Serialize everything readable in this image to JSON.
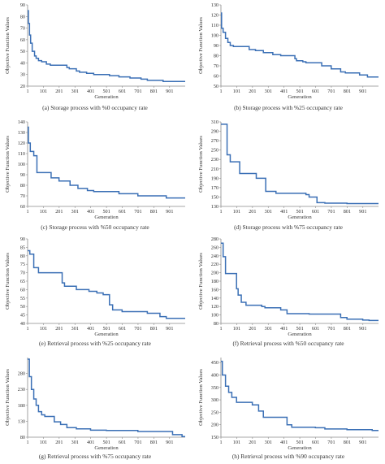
{
  "chart_data": [
    {
      "type": "line",
      "caption": "(a) Storage process with %0 occupancy rate",
      "xlabel": "Generation",
      "ylabel": "Objective Function Values",
      "xticks": [
        "1",
        "101",
        "201",
        "301",
        "401",
        "501",
        "601",
        "701",
        "801",
        "901"
      ],
      "yticks": [
        "20",
        "30",
        "40",
        "50",
        "60",
        "70",
        "80",
        "90"
      ],
      "xlim": [
        1,
        1000
      ],
      "ylim": [
        20,
        90
      ],
      "x": [
        1,
        6,
        6,
        13,
        13,
        20,
        20,
        30,
        30,
        45,
        45,
        55,
        55,
        70,
        70,
        90,
        90,
        120,
        120,
        145,
        145,
        250,
        250,
        265,
        265,
        310,
        310,
        330,
        330,
        375,
        375,
        420,
        420,
        520,
        520,
        580,
        580,
        650,
        650,
        720,
        720,
        760,
        760,
        860,
        860,
        1000
      ],
      "y": [
        85,
        85,
        74,
        74,
        64,
        64,
        57,
        57,
        50,
        50,
        46,
        46,
        44,
        44,
        42,
        42,
        41,
        41,
        39,
        39,
        38,
        38,
        36,
        36,
        35,
        35,
        33,
        33,
        32,
        32,
        31,
        31,
        30,
        30,
        29,
        29,
        28,
        28,
        27,
        27,
        26,
        26,
        25,
        25,
        24,
        24
      ]
    },
    {
      "type": "line",
      "caption": "(b) Storage process with %25 occupancy rate",
      "xlabel": "Generation",
      "ylabel": "Objective Function Values",
      "xticks": [
        "1",
        "101",
        "201",
        "301",
        "401",
        "501",
        "601",
        "701",
        "801",
        "901"
      ],
      "yticks": [
        "50",
        "60",
        "70",
        "80",
        "90",
        "100",
        "110",
        "120",
        "130"
      ],
      "xlim": [
        1,
        1000
      ],
      "ylim": [
        50,
        130
      ],
      "x": [
        1,
        5,
        5,
        15,
        15,
        30,
        30,
        45,
        45,
        60,
        60,
        80,
        80,
        180,
        180,
        220,
        220,
        270,
        270,
        330,
        330,
        380,
        380,
        470,
        470,
        480,
        480,
        520,
        520,
        540,
        540,
        640,
        640,
        700,
        700,
        760,
        760,
        790,
        790,
        880,
        880,
        930,
        930,
        1000
      ],
      "y": [
        122,
        122,
        107,
        107,
        103,
        103,
        97,
        97,
        93,
        93,
        90,
        90,
        89,
        89,
        86,
        86,
        85,
        85,
        83,
        83,
        81,
        81,
        80,
        80,
        77,
        77,
        75,
        75,
        74,
        74,
        73,
        73,
        70,
        70,
        67,
        67,
        64,
        64,
        63,
        63,
        61,
        61,
        59,
        59
      ]
    },
    {
      "type": "line",
      "caption": "(c) Storage process with %50 occupancy rate",
      "xlabel": "Generation",
      "ylabel": "Objective Function Values",
      "xticks": [
        "1",
        "101",
        "201",
        "301",
        "401",
        "501",
        "601",
        "701",
        "801",
        "901"
      ],
      "yticks": [
        "60",
        "70",
        "80",
        "90",
        "100",
        "110",
        "120",
        "130",
        "140"
      ],
      "xlim": [
        1,
        1000
      ],
      "ylim": [
        60,
        140
      ],
      "x": [
        1,
        6,
        6,
        18,
        18,
        40,
        40,
        60,
        60,
        150,
        150,
        200,
        200,
        270,
        270,
        320,
        320,
        380,
        380,
        420,
        420,
        580,
        580,
        700,
        700,
        880,
        880,
        1000
      ],
      "y": [
        135,
        135,
        120,
        120,
        112,
        112,
        108,
        108,
        92,
        92,
        87,
        87,
        84,
        84,
        80,
        80,
        77,
        77,
        75,
        75,
        74,
        74,
        72,
        72,
        70,
        70,
        68,
        68
      ]
    },
    {
      "type": "line",
      "caption": "(d) Storage process with %75 occupancy rate",
      "xlabel": "Generation",
      "ylabel": "Objective Function Values",
      "xticks": [
        "1",
        "101",
        "201",
        "301",
        "401",
        "501",
        "601",
        "701",
        "801",
        "901"
      ],
      "yticks": [
        "130",
        "150",
        "170",
        "190",
        "210",
        "230",
        "250",
        "270",
        "290",
        "310"
      ],
      "xlim": [
        1,
        1000
      ],
      "ylim": [
        130,
        310
      ],
      "x": [
        1,
        40,
        40,
        60,
        60,
        120,
        120,
        225,
        225,
        285,
        285,
        310,
        310,
        350,
        350,
        540,
        540,
        560,
        560,
        610,
        610,
        660,
        660,
        800,
        800,
        1000
      ],
      "y": [
        305,
        305,
        240,
        240,
        225,
        225,
        200,
        200,
        190,
        190,
        162,
        162,
        162,
        162,
        158,
        158,
        155,
        155,
        150,
        150,
        138,
        138,
        137,
        137,
        136,
        136
      ]
    },
    {
      "type": "line",
      "caption": "(e) Retrieval process with %25 occupancy rate",
      "xlabel": "Generation",
      "ylabel": "Objective Function Values",
      "xticks": [
        "1",
        "101",
        "201",
        "301",
        "401",
        "501",
        "601",
        "701",
        "801",
        "901"
      ],
      "yticks": [
        "40",
        "45",
        "50",
        "55",
        "60",
        "65",
        "70",
        "75",
        "80",
        "85",
        "90"
      ],
      "xlim": [
        1,
        1000
      ],
      "ylim": [
        40,
        90
      ],
      "x": [
        1,
        15,
        15,
        40,
        40,
        70,
        70,
        110,
        110,
        220,
        220,
        235,
        235,
        270,
        270,
        310,
        310,
        390,
        390,
        440,
        440,
        480,
        480,
        520,
        520,
        540,
        540,
        600,
        600,
        760,
        760,
        840,
        840,
        880,
        880,
        1000
      ],
      "y": [
        83,
        83,
        81,
        81,
        73,
        73,
        70,
        70,
        70,
        70,
        64,
        64,
        62,
        62,
        62,
        62,
        60,
        60,
        59,
        59,
        58,
        58,
        57,
        57,
        51,
        51,
        48,
        48,
        47,
        47,
        46,
        46,
        44,
        44,
        43,
        43
      ]
    },
    {
      "type": "line",
      "caption": "(f) Retrieval process with %50 occupancy rate",
      "xlabel": "Generation",
      "ylabel": "Objective Function Values",
      "xticks": [
        "1",
        "101",
        "201",
        "301",
        "401",
        "501",
        "601",
        "701",
        "801",
        "901"
      ],
      "yticks": [
        "80",
        "100",
        "120",
        "140",
        "160",
        "180",
        "200",
        "220",
        "240",
        "260",
        "280"
      ],
      "xlim": [
        1,
        1000
      ],
      "ylim": [
        80,
        280
      ],
      "x": [
        1,
        15,
        15,
        30,
        30,
        100,
        100,
        110,
        110,
        130,
        130,
        160,
        160,
        260,
        260,
        280,
        280,
        380,
        380,
        420,
        420,
        560,
        560,
        760,
        760,
        800,
        800,
        900,
        900,
        940,
        940,
        1000
      ],
      "y": [
        270,
        270,
        238,
        238,
        198,
        198,
        162,
        162,
        147,
        147,
        130,
        130,
        123,
        123,
        120,
        120,
        117,
        117,
        112,
        112,
        103,
        103,
        102,
        102,
        94,
        94,
        90,
        90,
        88,
        88,
        87,
        87
      ]
    },
    {
      "type": "line",
      "caption": "(g) Retrieval process with %75 occupancy rate",
      "xlabel": "Generation",
      "ylabel": "Objective Function Values",
      "xticks": [
        "1",
        "101",
        "201",
        "301",
        "401",
        "501",
        "601",
        "701",
        "801",
        "901"
      ],
      "yticks": [
        "80",
        "130",
        "180",
        "230",
        "280"
      ],
      "xlim": [
        1,
        1000
      ],
      "ylim": [
        80,
        330
      ],
      "x": [
        1,
        12,
        12,
        25,
        25,
        40,
        40,
        55,
        55,
        70,
        70,
        90,
        90,
        110,
        110,
        170,
        170,
        210,
        210,
        250,
        250,
        310,
        310,
        400,
        400,
        500,
        500,
        700,
        700,
        920,
        920,
        980,
        980,
        1000
      ],
      "y": [
        325,
        325,
        270,
        270,
        230,
        230,
        200,
        200,
        180,
        180,
        160,
        160,
        150,
        150,
        145,
        145,
        128,
        128,
        120,
        120,
        110,
        110,
        106,
        106,
        102,
        102,
        101,
        101,
        98,
        98,
        88,
        88,
        82,
        82
      ]
    },
    {
      "type": "line",
      "caption": "(h) Retrieval process with %90 occupancy rate",
      "xlabel": "Generation",
      "ylabel": "Objective Function Values",
      "xticks": [
        "1",
        "101",
        "201",
        "301",
        "401",
        "501",
        "601",
        "701",
        "801",
        "901"
      ],
      "yticks": [
        "150",
        "200",
        "250",
        "300",
        "350",
        "400",
        "450"
      ],
      "xlim": [
        1,
        1000
      ],
      "ylim": [
        150,
        470
      ],
      "x": [
        1,
        10,
        10,
        30,
        30,
        50,
        50,
        70,
        70,
        100,
        100,
        200,
        200,
        240,
        240,
        270,
        270,
        290,
        290,
        420,
        420,
        450,
        450,
        600,
        600,
        660,
        660,
        800,
        800,
        960,
        960,
        1000
      ],
      "y": [
        455,
        455,
        400,
        400,
        355,
        355,
        330,
        330,
        310,
        310,
        290,
        290,
        280,
        280,
        255,
        255,
        230,
        230,
        230,
        230,
        200,
        200,
        190,
        190,
        188,
        188,
        183,
        183,
        180,
        180,
        177,
        177
      ]
    }
  ]
}
